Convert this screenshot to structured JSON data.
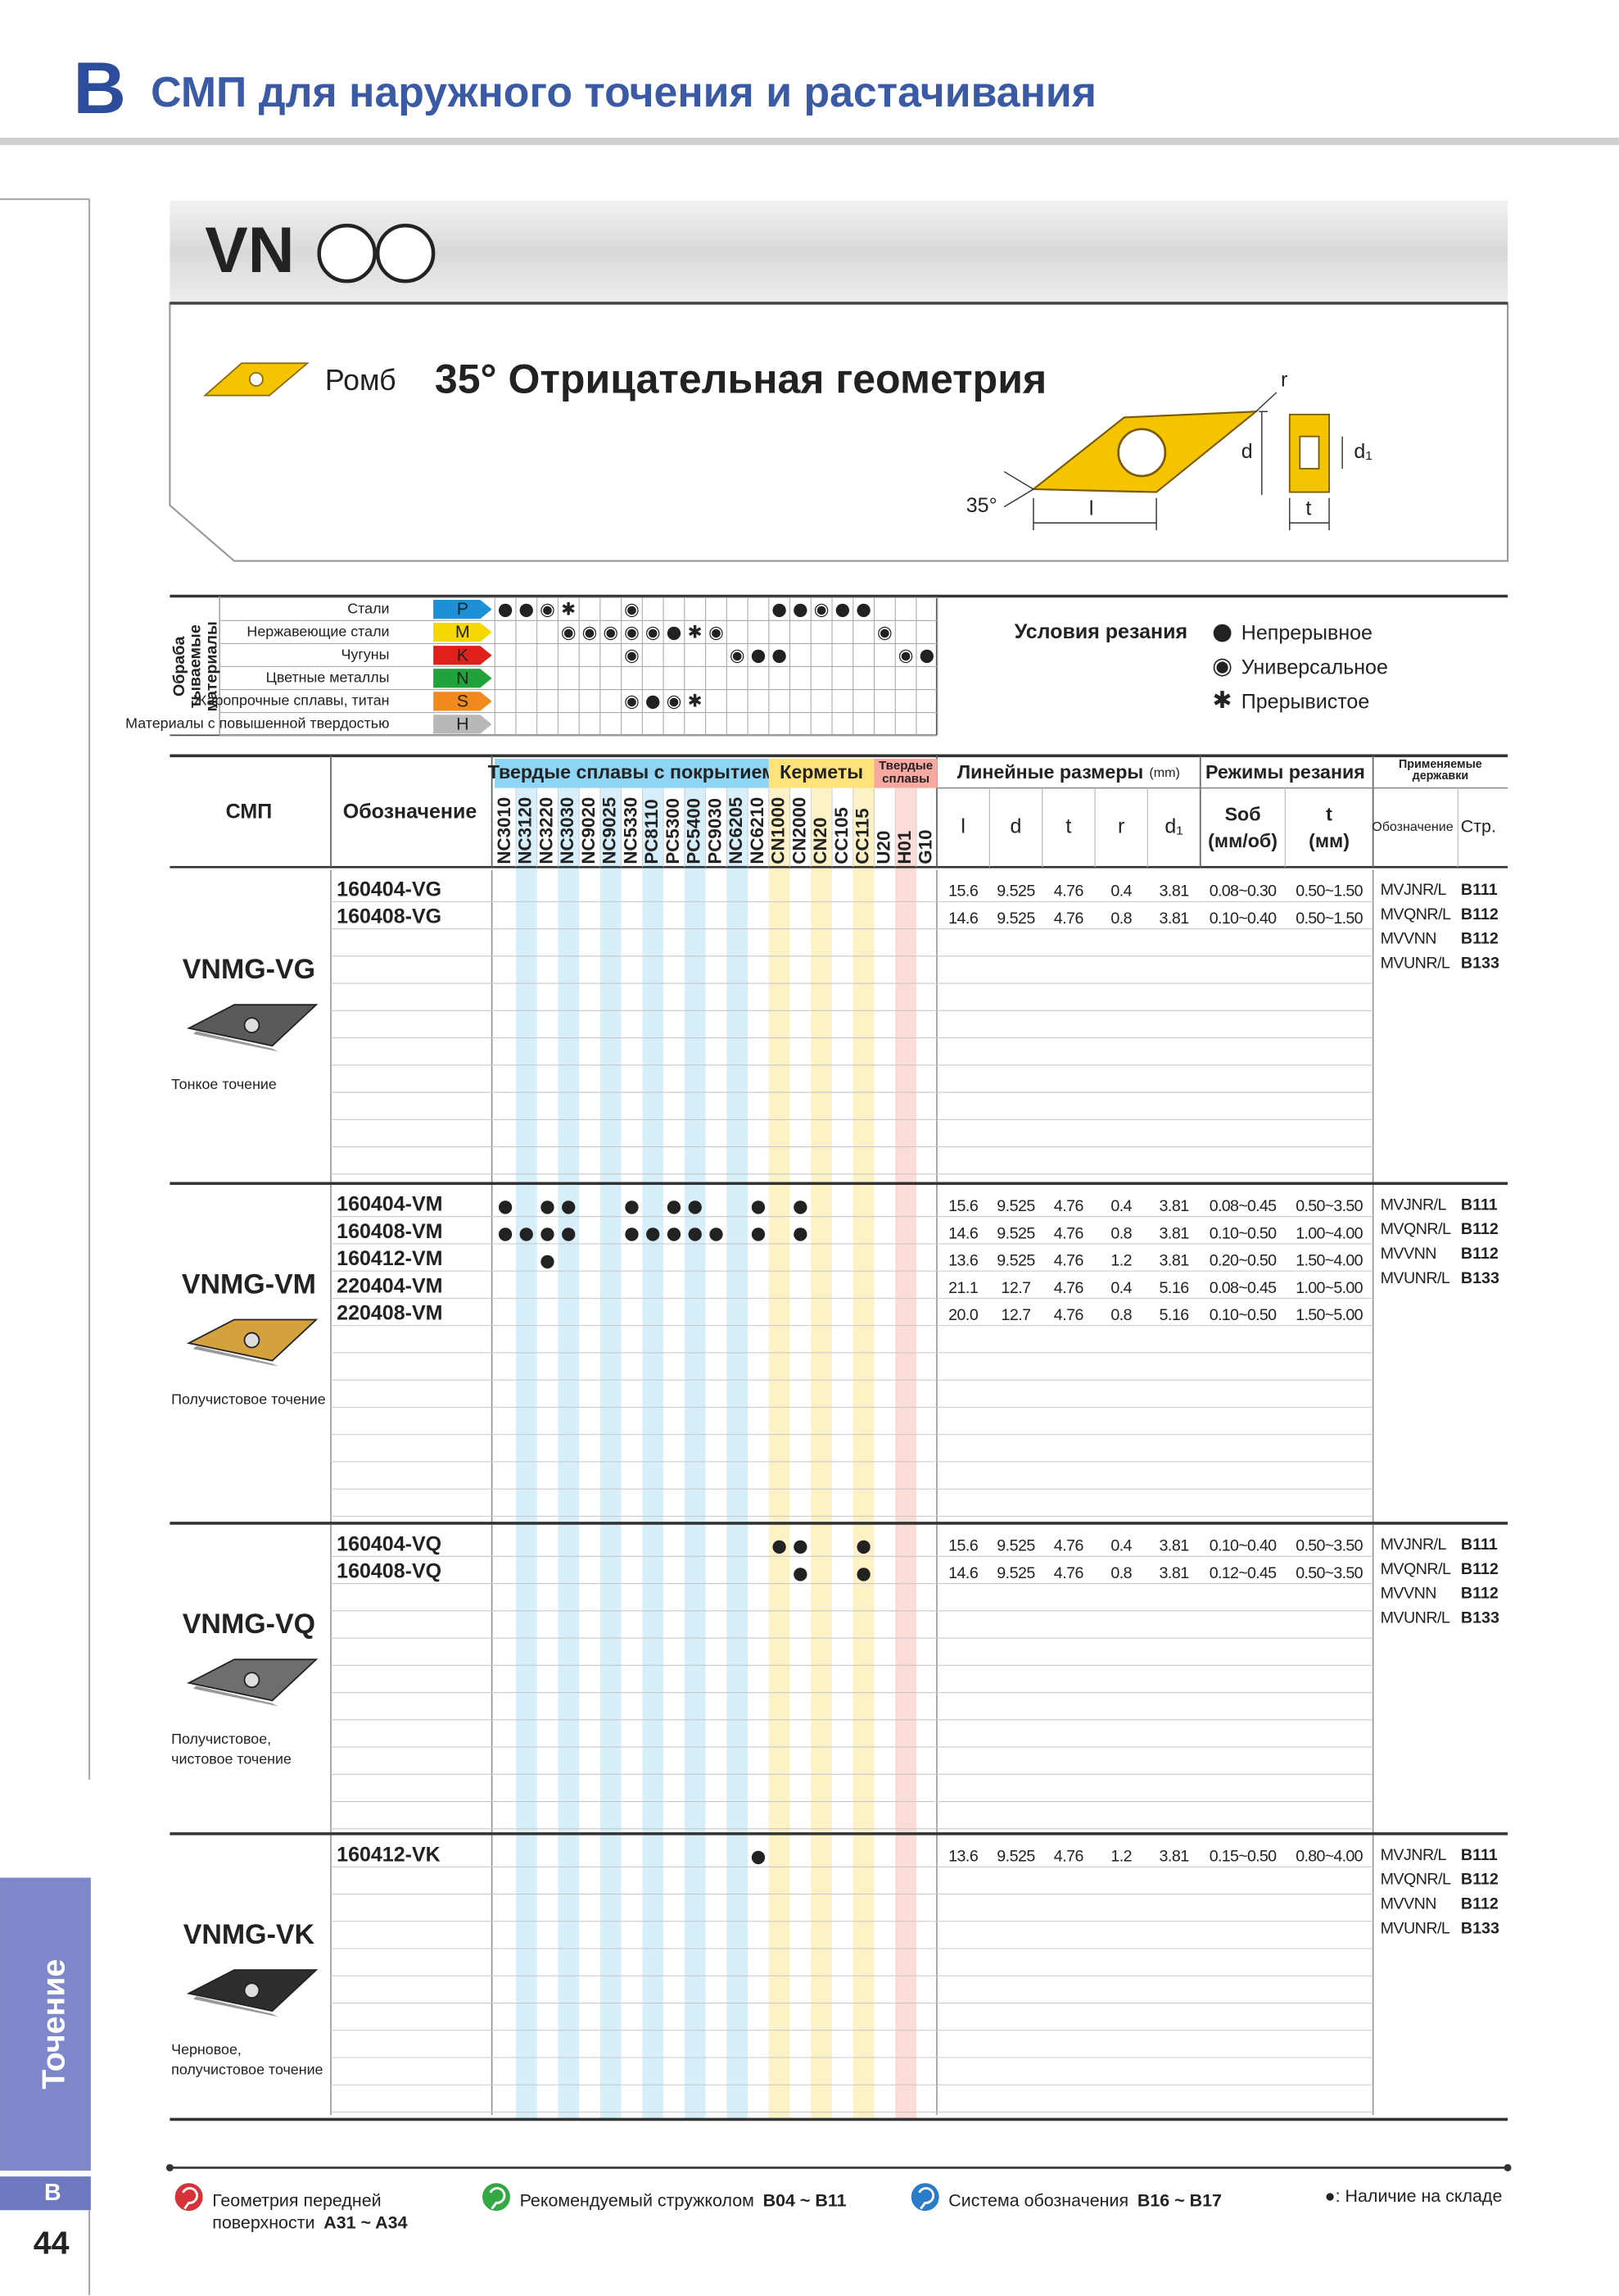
{
  "header": {
    "letter": "B",
    "title": "СМП для наружного точения и растачивания"
  },
  "product": {
    "code": "VN",
    "shape": "Ромб",
    "geometry": "35° Отрицательная геометрия",
    "diagram": {
      "r": "r",
      "d": "d",
      "d1": "d₁",
      "l": "l",
      "t": "t",
      "angle": "35°"
    }
  },
  "materials": {
    "title": [
      "Обраба",
      "тываемые",
      "материалы"
    ],
    "rows": [
      {
        "name": "Стали",
        "code": "P",
        "color": "#1e90d8",
        "marks": [
          "●",
          "●",
          "◉",
          "✱",
          null,
          null,
          "◉",
          null,
          null,
          null,
          null,
          null,
          null,
          "●",
          "●",
          "◉",
          "●",
          "●",
          null,
          null,
          null
        ]
      },
      {
        "name": "Нержавеющие стали",
        "code": "M",
        "color": "#f5d800",
        "marks": [
          null,
          null,
          null,
          "◉",
          "◉",
          "◉",
          "◉",
          "◉",
          "●",
          "✱",
          "◉",
          null,
          null,
          null,
          null,
          null,
          null,
          null,
          "◉",
          null,
          null
        ]
      },
      {
        "name": "Чугуны",
        "code": "K",
        "color": "#e0201b",
        "marks": [
          null,
          null,
          null,
          null,
          null,
          null,
          "◉",
          null,
          null,
          null,
          null,
          "◉",
          "●",
          "●",
          null,
          null,
          null,
          null,
          null,
          "◉",
          "●"
        ]
      },
      {
        "name": "Цветные металлы",
        "code": "N",
        "color": "#1fa33a",
        "marks": [
          null,
          null,
          null,
          null,
          null,
          null,
          null,
          null,
          null,
          null,
          null,
          null,
          null,
          null,
          null,
          null,
          null,
          null,
          null,
          null,
          null
        ]
      },
      {
        "name": "Жаропрочные сплавы, титан",
        "code": "S",
        "color": "#f08a1c",
        "marks": [
          null,
          null,
          null,
          null,
          null,
          null,
          "◉",
          "●",
          "◉",
          "✱",
          null,
          null,
          null,
          null,
          null,
          null,
          null,
          null,
          null,
          null,
          null
        ]
      },
      {
        "name": "Материалы с повышенной твердостью",
        "code": "H",
        "color": "#b8b8b8",
        "marks": [
          null,
          null,
          null,
          null,
          null,
          null,
          null,
          null,
          null,
          null,
          null,
          null,
          null,
          null,
          null,
          null,
          null,
          null,
          null,
          null,
          null
        ]
      }
    ]
  },
  "cutting": {
    "title": "Условия резания",
    "items": [
      {
        "symbol": "●",
        "label": "Непрерывное"
      },
      {
        "symbol": "◉",
        "label": "Универсальное"
      },
      {
        "symbol": "✱",
        "label": "Прерывистое"
      }
    ]
  },
  "table": {
    "headers": {
      "insert": "СМП",
      "designation": "Обозначение",
      "dims": {
        "title": "Линейные размеры",
        "unit": "(mm)",
        "cols": [
          "l",
          "d",
          "t",
          "r",
          "d₁"
        ]
      },
      "cond": {
        "title": "Режимы резания",
        "cols": [
          [
            "Sоб",
            "(мм/об)"
          ],
          [
            "t",
            "(мм)"
          ]
        ]
      },
      "holders": {
        "title": [
          "Применяемые",
          "державки"
        ],
        "cols": [
          "Обозначение",
          "Стр."
        ]
      }
    },
    "groups": [
      {
        "label": [
          "Твердые сплавы с покрытием"
        ],
        "color": "#8ed4f4",
        "stripe": "#d6effb",
        "grades": [
          "NC3010",
          "NC3120",
          "NC3220",
          "NC3030",
          "NC9020",
          "NC9025",
          "NC5330",
          "PC8110",
          "PC5300",
          "PC5400",
          "PC9030",
          "NC6205",
          "NC6210"
        ]
      },
      {
        "label": [
          "Керметы"
        ],
        "color": "#ffe27a",
        "stripe": "#fdf2c6",
        "grades": [
          "CN1000",
          "CN2000",
          "CN20",
          "CC105",
          "CC115"
        ]
      },
      {
        "label": [
          "Твердые",
          "сплавы"
        ],
        "color": "#f7a8a0",
        "stripe": "#fbdcd8",
        "grades": [
          "U20",
          "H01",
          "G10"
        ]
      }
    ],
    "sections": [
      {
        "name": "VNMG-VG",
        "caption": [
          "Тонкое точение"
        ],
        "rows": [
          {
            "designation": "160404-VG",
            "stock": [
              null,
              null,
              null,
              null,
              null,
              null,
              null,
              null,
              null,
              null,
              null,
              null,
              null,
              null,
              null,
              null,
              null,
              null,
              null,
              null,
              null
            ],
            "dims": [
              "15.6",
              "9.525",
              "4.76",
              "0.4",
              "3.81"
            ],
            "feed": "0.08~0.30",
            "depth": "0.50~1.50"
          },
          {
            "designation": "160408-VG",
            "stock": [
              null,
              null,
              null,
              null,
              null,
              null,
              null,
              null,
              null,
              null,
              null,
              null,
              null,
              null,
              null,
              null,
              null,
              null,
              null,
              null,
              null
            ],
            "dims": [
              "14.6",
              "9.525",
              "4.76",
              "0.8",
              "3.81"
            ],
            "feed": "0.10~0.40",
            "depth": "0.50~1.50"
          }
        ],
        "holders": [
          {
            "name": "MVJNR/L",
            "page": "B111"
          },
          {
            "name": "MVQNR/L",
            "page": "B112"
          },
          {
            "name": "MVVNN",
            "page": "B112"
          },
          {
            "name": "MVUNR/L",
            "page": "B133"
          }
        ]
      },
      {
        "name": "VNMG-VM",
        "caption": [
          "Получистовое точение"
        ],
        "rows": [
          {
            "designation": "160404-VM",
            "stock": [
              "●",
              null,
              "●",
              "●",
              null,
              null,
              "●",
              null,
              "●",
              "●",
              null,
              null,
              "●",
              null,
              "●",
              null,
              null,
              null,
              null,
              null,
              null
            ],
            "dims": [
              "15.6",
              "9.525",
              "4.76",
              "0.4",
              "3.81"
            ],
            "feed": "0.08~0.45",
            "depth": "0.50~3.50"
          },
          {
            "designation": "160408-VM",
            "stock": [
              "●",
              "●",
              "●",
              "●",
              null,
              null,
              "●",
              "●",
              "●",
              "●",
              "●",
              null,
              "●",
              null,
              "●",
              null,
              null,
              null,
              null,
              null,
              null
            ],
            "dims": [
              "14.6",
              "9.525",
              "4.76",
              "0.8",
              "3.81"
            ],
            "feed": "0.10~0.50",
            "depth": "1.00~4.00"
          },
          {
            "designation": "160412-VM",
            "stock": [
              null,
              null,
              "●",
              null,
              null,
              null,
              null,
              null,
              null,
              null,
              null,
              null,
              null,
              null,
              null,
              null,
              null,
              null,
              null,
              null,
              null
            ],
            "dims": [
              "13.6",
              "9.525",
              "4.76",
              "1.2",
              "3.81"
            ],
            "feed": "0.20~0.50",
            "depth": "1.50~4.00"
          },
          {
            "designation": "220404-VM",
            "stock": [
              null,
              null,
              null,
              null,
              null,
              null,
              null,
              null,
              null,
              null,
              null,
              null,
              null,
              null,
              null,
              null,
              null,
              null,
              null,
              null,
              null
            ],
            "dims": [
              "21.1",
              "12.7",
              "4.76",
              "0.4",
              "5.16"
            ],
            "feed": "0.08~0.45",
            "depth": "1.00~5.00"
          },
          {
            "designation": "220408-VM",
            "stock": [
              null,
              null,
              null,
              null,
              null,
              null,
              null,
              null,
              null,
              null,
              null,
              null,
              null,
              null,
              null,
              null,
              null,
              null,
              null,
              null,
              null
            ],
            "dims": [
              "20.0",
              "12.7",
              "4.76",
              "0.8",
              "5.16"
            ],
            "feed": "0.10~0.50",
            "depth": "1.50~5.00"
          }
        ],
        "holders": [
          {
            "name": "MVJNR/L",
            "page": "B111"
          },
          {
            "name": "MVQNR/L",
            "page": "B112"
          },
          {
            "name": "MVVNN",
            "page": "B112"
          },
          {
            "name": "MVUNR/L",
            "page": "B133"
          }
        ]
      },
      {
        "name": "VNMG-VQ",
        "caption": [
          "Получистовое,",
          "чистовое точение"
        ],
        "rows": [
          {
            "designation": "160404-VQ",
            "stock": [
              null,
              null,
              null,
              null,
              null,
              null,
              null,
              null,
              null,
              null,
              null,
              null,
              null,
              "●",
              "●",
              null,
              null,
              "●",
              null,
              null,
              null
            ],
            "dims": [
              "15.6",
              "9.525",
              "4.76",
              "0.4",
              "3.81"
            ],
            "feed": "0.10~0.40",
            "depth": "0.50~3.50"
          },
          {
            "designation": "160408-VQ",
            "stock": [
              null,
              null,
              null,
              null,
              null,
              null,
              null,
              null,
              null,
              null,
              null,
              null,
              null,
              null,
              "●",
              null,
              null,
              "●",
              null,
              null,
              null
            ],
            "dims": [
              "14.6",
              "9.525",
              "4.76",
              "0.8",
              "3.81"
            ],
            "feed": "0.12~0.45",
            "depth": "0.50~3.50"
          }
        ],
        "holders": [
          {
            "name": "MVJNR/L",
            "page": "B111"
          },
          {
            "name": "MVQNR/L",
            "page": "B112"
          },
          {
            "name": "MVVNN",
            "page": "B112"
          },
          {
            "name": "MVUNR/L",
            "page": "B133"
          }
        ]
      },
      {
        "name": "VNMG-VK",
        "caption": [
          "Черновое,",
          "получистовое точение"
        ],
        "rows": [
          {
            "designation": "160412-VK",
            "stock": [
              null,
              null,
              null,
              null,
              null,
              null,
              null,
              null,
              null,
              null,
              null,
              null,
              "●",
              null,
              null,
              null,
              null,
              null,
              null,
              null,
              null
            ],
            "dims": [
              "13.6",
              "9.525",
              "4.76",
              "1.2",
              "3.81"
            ],
            "feed": "0.15~0.50",
            "depth": "0.80~4.00"
          }
        ],
        "holders": [
          {
            "name": "MVJNR/L",
            "page": "B111"
          },
          {
            "name": "MVQNR/L",
            "page": "B112"
          },
          {
            "name": "MVVNN",
            "page": "B112"
          },
          {
            "name": "MVUNR/L",
            "page": "B133"
          }
        ]
      }
    ]
  },
  "footer": {
    "links": [
      {
        "label": [
          "Геометрия передней",
          "поверхности"
        ],
        "pages": "A31 ~ A34",
        "color": "#d5323a"
      },
      {
        "label": [
          "Рекомендуемый стружколом"
        ],
        "pages": "B04 ~ B11",
        "color": "#33a844"
      },
      {
        "label": [
          "Система обозначения"
        ],
        "pages": "B16 ~ B17",
        "color": "#2a7cc6"
      }
    ],
    "stock_note": {
      "symbol": "●",
      "label": ": Наличие на складе"
    }
  },
  "side": {
    "tab": "Точение",
    "letter": "B",
    "page": "44"
  }
}
